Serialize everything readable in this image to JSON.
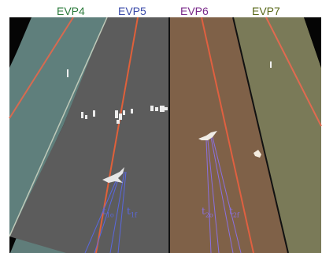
{
  "lane_labels": {
    "evp4": "EVP4",
    "evp5": "EVP5",
    "evp6": "EVP6",
    "evp7": "EVP7"
  },
  "annotations": {
    "t1": {
      "main": "t",
      "sub": "1o"
    },
    "t2": {
      "main": "t",
      "sub": "1f"
    },
    "t3": {
      "main": "t",
      "sub": "2o"
    },
    "t4": {
      "main": "t",
      "sub": "2f"
    }
  },
  "colors": {
    "evp4_label": "#2a7a3a",
    "evp5_label": "#3a4aa8",
    "evp6_label": "#7a2a8a",
    "evp7_label": "#5a6a1a",
    "track_blue": "#5060d8",
    "track_purple": "#7a60d0",
    "lane_line": "#e0603a"
  }
}
